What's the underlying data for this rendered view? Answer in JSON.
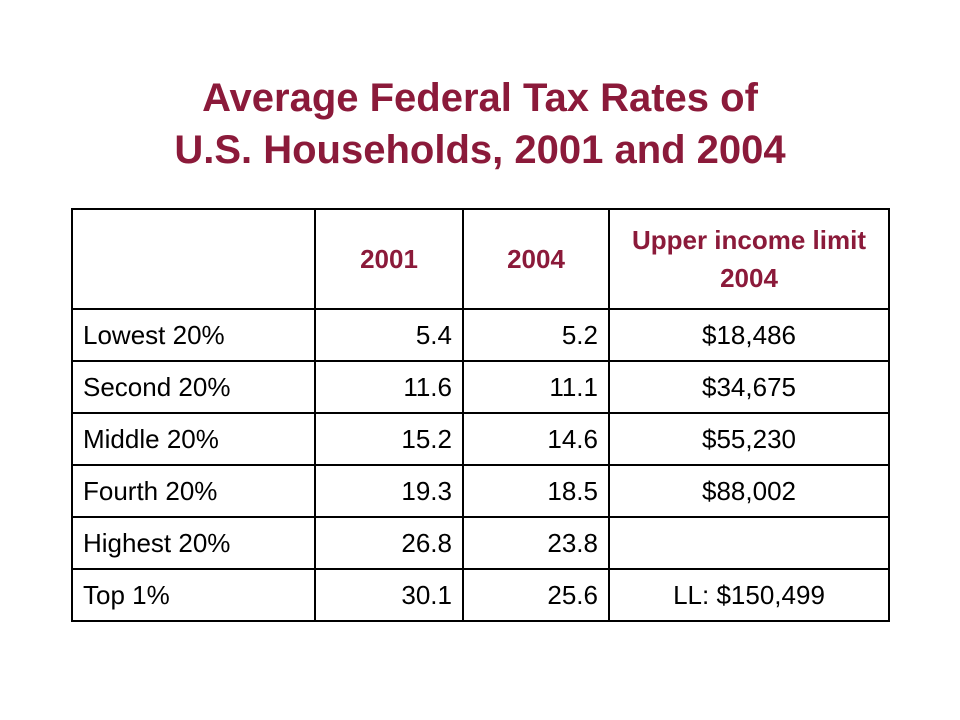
{
  "title": {
    "line1": "Average Federal Tax Rates of",
    "line2": "U.S. Households, 2001 and 2004"
  },
  "table": {
    "headers": [
      "",
      "2001",
      "2004",
      "Upper income limit 2004"
    ],
    "rows": [
      [
        "Lowest 20%",
        "5.4",
        "5.2",
        "$18,486"
      ],
      [
        "Second 20%",
        "11.6",
        "11.1",
        "$34,675"
      ],
      [
        "Middle 20%",
        "15.2",
        "14.6",
        "$55,230"
      ],
      [
        "Fourth 20%",
        "19.3",
        "18.5",
        "$88,002"
      ],
      [
        "Highest 20%",
        "26.8",
        "23.8",
        ""
      ],
      [
        "Top 1%",
        "30.1",
        "25.6",
        "LL: $150,499"
      ]
    ]
  },
  "colors": {
    "accent": "#8b1a3a",
    "text": "#000000",
    "background": "#ffffff"
  }
}
